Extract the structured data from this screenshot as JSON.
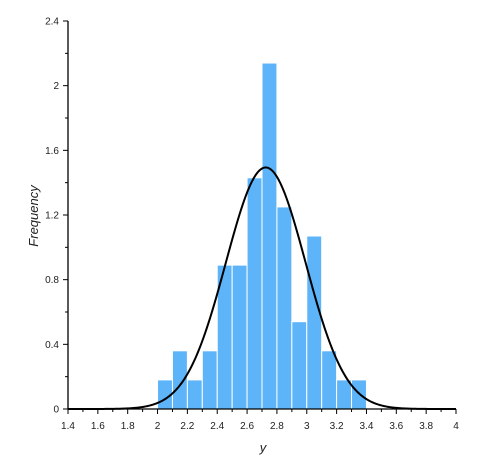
{
  "chart_data": {
    "type": "bar",
    "xlabel": "y",
    "ylabel": "Frequency",
    "xlim": [
      1.4,
      4.0
    ],
    "ylim": [
      0,
      2.4
    ],
    "x_ticks": [
      "1.4",
      "1.6",
      "1.8",
      "2",
      "2.2",
      "2.4",
      "2.6",
      "2.8",
      "3",
      "3.2",
      "3.4",
      "3.6",
      "3.8",
      "4"
    ],
    "y_ticks": [
      "0",
      "0.4",
      "0.8",
      "1.2",
      "1.6",
      "2",
      "2.4"
    ],
    "grid": false,
    "legend": "none",
    "histogram": {
      "bin_edges": [
        2.0,
        2.1,
        2.2,
        2.3,
        2.4,
        2.5,
        2.6,
        2.7,
        2.8,
        2.9,
        3.0,
        3.1,
        3.2,
        3.3,
        3.4
      ],
      "frequencies": [
        0.18,
        0.36,
        0.18,
        0.36,
        0.89,
        0.89,
        1.43,
        2.14,
        1.25,
        0.54,
        1.07,
        0.36,
        0.18,
        0.18
      ]
    },
    "normal_curve": {
      "mean": 2.725,
      "std": 0.267
    },
    "colors": {
      "bar_fill": "#5db4f8",
      "bar_edge": "#ffffff",
      "curve": "#000000",
      "axis": "#000000"
    }
  }
}
